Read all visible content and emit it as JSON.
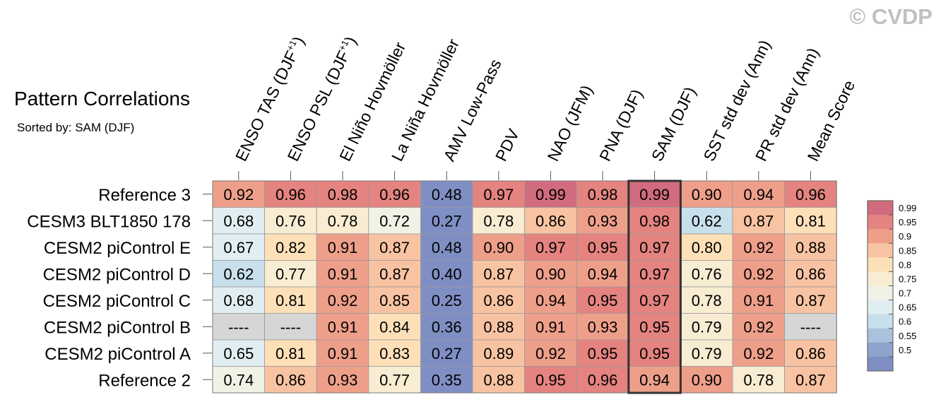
{
  "watermark": "© CVDP",
  "title": "Pattern Correlations",
  "subtitle": "Sorted by: SAM (DJF)",
  "chart_data": {
    "type": "heatmap",
    "title": "Pattern Correlations",
    "subtitle": "Sorted by: SAM (DJF)",
    "columns": [
      "ENSO TAS (DJF+1)",
      "ENSO PSL (DJF+1)",
      "El Niño Hovmöller",
      "La Niña Hovmöller",
      "AMV Low-Pass",
      "PDV",
      "NAO (JFM)",
      "PNA (DJF)",
      "SAM (DJF)",
      "SST std dev (Ann)",
      "PR std dev (Ann)",
      "Mean Score"
    ],
    "rows": [
      "Reference 3",
      "CESM3 BLT1850 178",
      "CESM2 piControl E",
      "CESM2 piControl D",
      "CESM2 piControl C",
      "CESM2 piControl B",
      "CESM2 piControl A",
      "Reference 2"
    ],
    "values": [
      [
        0.92,
        0.96,
        0.98,
        0.96,
        0.48,
        0.97,
        0.99,
        0.98,
        0.99,
        0.9,
        0.94,
        0.96
      ],
      [
        0.68,
        0.76,
        0.78,
        0.72,
        0.27,
        0.78,
        0.86,
        0.93,
        0.98,
        0.62,
        0.87,
        0.81
      ],
      [
        0.67,
        0.82,
        0.91,
        0.87,
        0.48,
        0.9,
        0.97,
        0.95,
        0.97,
        0.8,
        0.92,
        0.88
      ],
      [
        0.62,
        0.77,
        0.91,
        0.87,
        0.4,
        0.87,
        0.9,
        0.94,
        0.97,
        0.76,
        0.92,
        0.86
      ],
      [
        0.68,
        0.81,
        0.92,
        0.85,
        0.25,
        0.86,
        0.94,
        0.95,
        0.97,
        0.78,
        0.91,
        0.87
      ],
      [
        null,
        null,
        0.91,
        0.84,
        0.36,
        0.88,
        0.91,
        0.93,
        0.95,
        0.79,
        0.92,
        null
      ],
      [
        0.65,
        0.81,
        0.91,
        0.83,
        0.27,
        0.89,
        0.92,
        0.95,
        0.95,
        0.79,
        0.92,
        0.86
      ],
      [
        0.74,
        0.86,
        0.93,
        0.77,
        0.35,
        0.88,
        0.95,
        0.96,
        0.94,
        0.9,
        0.78,
        0.87
      ]
    ],
    "missing_label": "----",
    "highlighted_column": "SAM (DJF)",
    "colorbar": {
      "ticks": [
        "0.99",
        "0.95",
        "0.9",
        "0.85",
        "0.8",
        "0.75",
        "0.7",
        "0.65",
        "0.6",
        "0.55",
        "0.5"
      ],
      "colors": [
        "#d06c7d",
        "#e4837f",
        "#ee9f8a",
        "#f8c3a2",
        "#fde0b8",
        "#f8ecd2",
        "#f1f2e6",
        "#e0eef2",
        "#c8e0ec",
        "#a9c2dd",
        "#8fa4cc",
        "#7f8fc4"
      ]
    },
    "missing_color": "#d6d6d6"
  }
}
